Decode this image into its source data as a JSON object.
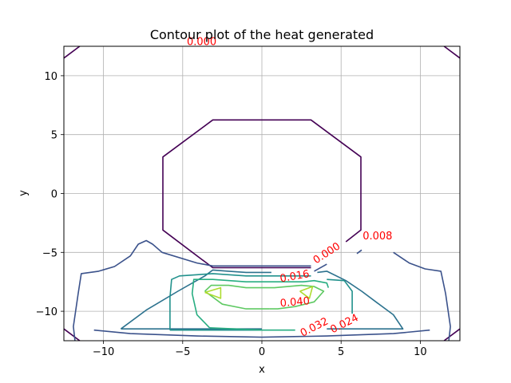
{
  "chart_data": {
    "type": "contour",
    "title": "Contour plot of the heat generated",
    "xlabel": "x",
    "ylabel": "y",
    "xlim": [
      -12.5,
      12.5
    ],
    "ylim": [
      -12.5,
      12.5
    ],
    "xticks": [
      -10,
      -5,
      0,
      5,
      10
    ],
    "yticks": [
      -10,
      -5,
      0,
      5,
      10
    ],
    "grid": true,
    "contour_labels": [
      {
        "text": "0.000",
        "x": -3.8,
        "y": 12.6,
        "level": 0.0,
        "angle": 0
      },
      {
        "text": "0.000",
        "x": 4.2,
        "y": -5.3,
        "level": 0.0,
        "angle": -33
      },
      {
        "text": "0.008",
        "x": 7.3,
        "y": -3.9,
        "level": 0.008,
        "angle": 0
      },
      {
        "text": "0.016",
        "x": 2.1,
        "y": -7.3,
        "level": 0.016,
        "angle": -10
      },
      {
        "text": "0.040",
        "x": 2.1,
        "y": -9.5,
        "level": 0.04,
        "angle": -5
      },
      {
        "text": "0.032",
        "x": 3.4,
        "y": -11.6,
        "level": 0.032,
        "angle": -27
      },
      {
        "text": "0.024",
        "x": 5.3,
        "y": -11.3,
        "level": 0.024,
        "angle": -27
      }
    ],
    "contours": [
      {
        "level": 0.0,
        "color": "#440154",
        "segments": [
          [
            [
              -12.5,
              11.5
            ],
            [
              -11.5,
              12.5
            ]
          ],
          [
            [
              11.5,
              12.5
            ],
            [
              12.5,
              11.5
            ]
          ],
          [
            [
              -12.5,
              -11.5
            ],
            [
              -11.5,
              -12.5
            ]
          ],
          [
            [
              11.5,
              -12.5
            ],
            [
              12.5,
              -11.5
            ]
          ],
          [
            [
              3.1,
              -6.3
            ],
            [
              -3.1,
              -6.3
            ],
            [
              -6.25,
              -3.1
            ],
            [
              -6.25,
              3.1
            ],
            [
              -3.1,
              6.25
            ],
            [
              3.1,
              6.25
            ],
            [
              6.25,
              3.1
            ],
            [
              6.25,
              -3.1
            ],
            [
              5.3,
              -4.1
            ]
          ]
        ]
      },
      {
        "level": 0.008,
        "color": "#3b528b",
        "segments": [
          [
            [
              -11.8,
              -12.5
            ],
            [
              -11.9,
              -11.3
            ],
            [
              -11.6,
              -8.5
            ],
            [
              -11.4,
              -6.8
            ],
            [
              -10.3,
              -6.6
            ],
            [
              -9.3,
              -6.2
            ],
            [
              -8.3,
              -5.3
            ],
            [
              -7.8,
              -4.3
            ],
            [
              -7.3,
              -4.0
            ],
            [
              -6.9,
              -4.3
            ],
            [
              -6.3,
              -5.0
            ],
            [
              -4.1,
              -5.9
            ],
            [
              -3.1,
              -6.15
            ],
            [
              3.1,
              -6.15
            ]
          ],
          [
            [
              3.3,
              -6.6
            ],
            [
              4.1,
              -6.0
            ]
          ],
          [
            [
              6.3,
              -4.8
            ],
            [
              6.0,
              -5.1
            ]
          ],
          [
            [
              8.3,
              -5.0
            ],
            [
              9.3,
              -5.9
            ],
            [
              10.3,
              -6.4
            ],
            [
              11.3,
              -6.6
            ],
            [
              11.6,
              -8.5
            ],
            [
              11.9,
              -11.3
            ],
            [
              11.8,
              -12.5
            ]
          ],
          [
            [
              -10.6,
              -11.6
            ],
            [
              -8.3,
              -11.9
            ],
            [
              -4.1,
              -12.1
            ],
            [
              0,
              -12.2
            ],
            [
              4.1,
              -12.1
            ],
            [
              8.3,
              -11.9
            ],
            [
              10.6,
              -11.6
            ]
          ]
        ]
      },
      {
        "level": 0.016,
        "color": "#2c728e",
        "segments": [
          [
            [
              -8.9,
              -11.5
            ],
            [
              -7.3,
              -9.9
            ],
            [
              -5.3,
              -8.3
            ],
            [
              -3.6,
              -7.0
            ],
            [
              -3.1,
              -6.5
            ],
            [
              -2.1,
              -6.6
            ],
            [
              -1.0,
              -6.7
            ],
            [
              0.6,
              -6.7
            ]
          ],
          [
            [
              3.5,
              -6.7
            ],
            [
              4.1,
              -6.6
            ],
            [
              5.3,
              -7.4
            ],
            [
              6.3,
              -8.3
            ],
            [
              7.3,
              -9.3
            ],
            [
              8.3,
              -10.3
            ],
            [
              8.9,
              -11.5
            ],
            [
              4.1,
              -11.5
            ]
          ],
          [
            [
              -8.9,
              -11.5
            ],
            [
              0,
              -11.5
            ]
          ]
        ]
      },
      {
        "level": 0.024,
        "color": "#21918c",
        "segments": [
          [
            [
              -5.8,
              -11.6
            ],
            [
              -5.8,
              -8.8
            ],
            [
              -5.7,
              -7.3
            ],
            [
              -5.2,
              -7.0
            ],
            [
              -4.1,
              -6.9
            ],
            [
              -3.1,
              -6.8
            ],
            [
              -1.0,
              -7.0
            ],
            [
              1.0,
              -7.0
            ],
            [
              3.1,
              -7.0
            ]
          ],
          [
            [
              4.1,
              -7.3
            ],
            [
              5.2,
              -7.4
            ],
            [
              5.7,
              -8.3
            ],
            [
              5.7,
              -10.2
            ]
          ],
          [
            [
              -5.8,
              -11.6
            ],
            [
              0,
              -11.6
            ]
          ]
        ]
      },
      {
        "level": 0.032,
        "color": "#27ad81",
        "segments": [
          [
            [
              -3.3,
              -11.4
            ],
            [
              -4.1,
              -10.3
            ],
            [
              -4.4,
              -8.5
            ],
            [
              -4.3,
              -7.3
            ],
            [
              -3.1,
              -7.3
            ],
            [
              -1.0,
              -7.5
            ],
            [
              0,
              -7.5
            ],
            [
              1.0,
              -7.5
            ],
            [
              2.6,
              -7.5
            ],
            [
              3.3,
              -7.4
            ],
            [
              4.1,
              -7.6
            ],
            [
              4.2,
              -8.0
            ]
          ],
          [
            [
              -3.3,
              -11.4
            ],
            [
              0,
              -11.6
            ],
            [
              2.1,
              -11.6
            ]
          ]
        ]
      },
      {
        "level": 0.04,
        "color": "#5ec962",
        "segments": [
          [
            [
              -3.6,
              -8.3
            ],
            [
              -3.2,
              -7.8
            ],
            [
              -2.1,
              -7.8
            ],
            [
              -1.0,
              -8.0
            ],
            [
              0.8,
              -8.0
            ],
            [
              2.5,
              -7.8
            ],
            [
              3.3,
              -7.9
            ],
            [
              3.9,
              -8.3
            ],
            [
              3.3,
              -9.2
            ],
            [
              2.1,
              -9.6
            ],
            [
              1.0,
              -9.8
            ],
            [
              0.5,
              -9.8
            ]
          ],
          [
            [
              -3.6,
              -8.3
            ],
            [
              -2.5,
              -9.4
            ],
            [
              -1.0,
              -9.8
            ],
            [
              0.5,
              -9.8
            ]
          ]
        ]
      },
      {
        "level": 0.048,
        "color": "#addc30",
        "segments": [
          [
            [
              -3.6,
              -8.4
            ],
            [
              -2.6,
              -8.0
            ],
            [
              -2.6,
              -8.9
            ],
            [
              -3.6,
              -8.4
            ]
          ],
          [
            [
              2.4,
              -8.3
            ],
            [
              3.2,
              -7.9
            ],
            [
              3.0,
              -8.9
            ],
            [
              2.4,
              -8.3
            ]
          ]
        ]
      }
    ]
  }
}
